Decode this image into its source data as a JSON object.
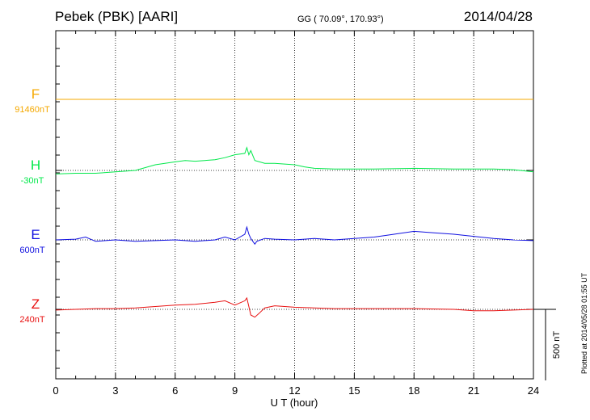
{
  "chart_data": {
    "type": "line",
    "title": "Pebek (PBK)  [AARI]",
    "subtitle": "GG ( 70.09°, 170.93°)",
    "date": "2014/04/28",
    "xlabel": "U T (hour)",
    "xlim": [
      0,
      24
    ],
    "xticks": [
      "0",
      "3",
      "6",
      "9",
      "12",
      "15",
      "18",
      "21",
      "24"
    ],
    "scale_bar_label": "500 nT",
    "scale_bar_nT": 500,
    "plotted_note": "Plotted at 2014/05/28 01:55 UT",
    "series": [
      {
        "name": "F",
        "baseline_label": "91460nT",
        "color": "#f5a800",
        "baseline_nT": 91460,
        "x": [
          0,
          24
        ],
        "y": [
          91460,
          91460
        ]
      },
      {
        "name": "H",
        "baseline_label": "-30nT",
        "color": "#00e84a",
        "baseline_nT": -30,
        "x": [
          0,
          1,
          2,
          3,
          4,
          5,
          6,
          6.5,
          7,
          8,
          8.5,
          9,
          9.5,
          9.6,
          9.7,
          9.8,
          10,
          10.5,
          11,
          12,
          12.5,
          13,
          14,
          16,
          18,
          20,
          22,
          23,
          24
        ],
        "y": [
          -55,
          -50,
          -50,
          -40,
          -30,
          10,
          30,
          40,
          35,
          45,
          60,
          80,
          90,
          130,
          80,
          110,
          40,
          20,
          20,
          10,
          -5,
          -15,
          -20,
          -20,
          -15,
          -20,
          -20,
          -25,
          -40
        ]
      },
      {
        "name": "E",
        "baseline_label": "600nT",
        "color": "#1010e0",
        "baseline_nT": 600,
        "x": [
          0,
          1,
          1.5,
          2,
          3,
          4,
          5,
          6,
          7,
          8,
          8.5,
          9,
          9.5,
          9.6,
          9.7,
          9.8,
          10,
          10.1,
          10.5,
          11,
          12,
          13,
          14,
          16,
          17,
          18,
          19,
          20,
          21,
          22,
          23,
          24
        ],
        "y": [
          600,
          605,
          620,
          590,
          600,
          590,
          595,
          600,
          590,
          600,
          620,
          600,
          640,
          690,
          640,
          610,
          570,
          590,
          610,
          605,
          600,
          610,
          600,
          620,
          640,
          660,
          650,
          640,
          625,
          610,
          600,
          595
        ]
      },
      {
        "name": "Z",
        "baseline_label": "240nT",
        "color": "#e81010",
        "baseline_nT": 240,
        "x": [
          0,
          1,
          2,
          3,
          4,
          5,
          6,
          7,
          8,
          8.5,
          9,
          9.5,
          9.6,
          9.7,
          9.8,
          10,
          10.2,
          10.5,
          11,
          12,
          13,
          14,
          16,
          18,
          20,
          21,
          22,
          23,
          24
        ],
        "y": [
          235,
          240,
          245,
          245,
          250,
          260,
          270,
          275,
          290,
          300,
          270,
          300,
          320,
          260,
          200,
          185,
          210,
          250,
          265,
          255,
          250,
          245,
          245,
          245,
          240,
          230,
          230,
          235,
          240
        ]
      }
    ]
  }
}
